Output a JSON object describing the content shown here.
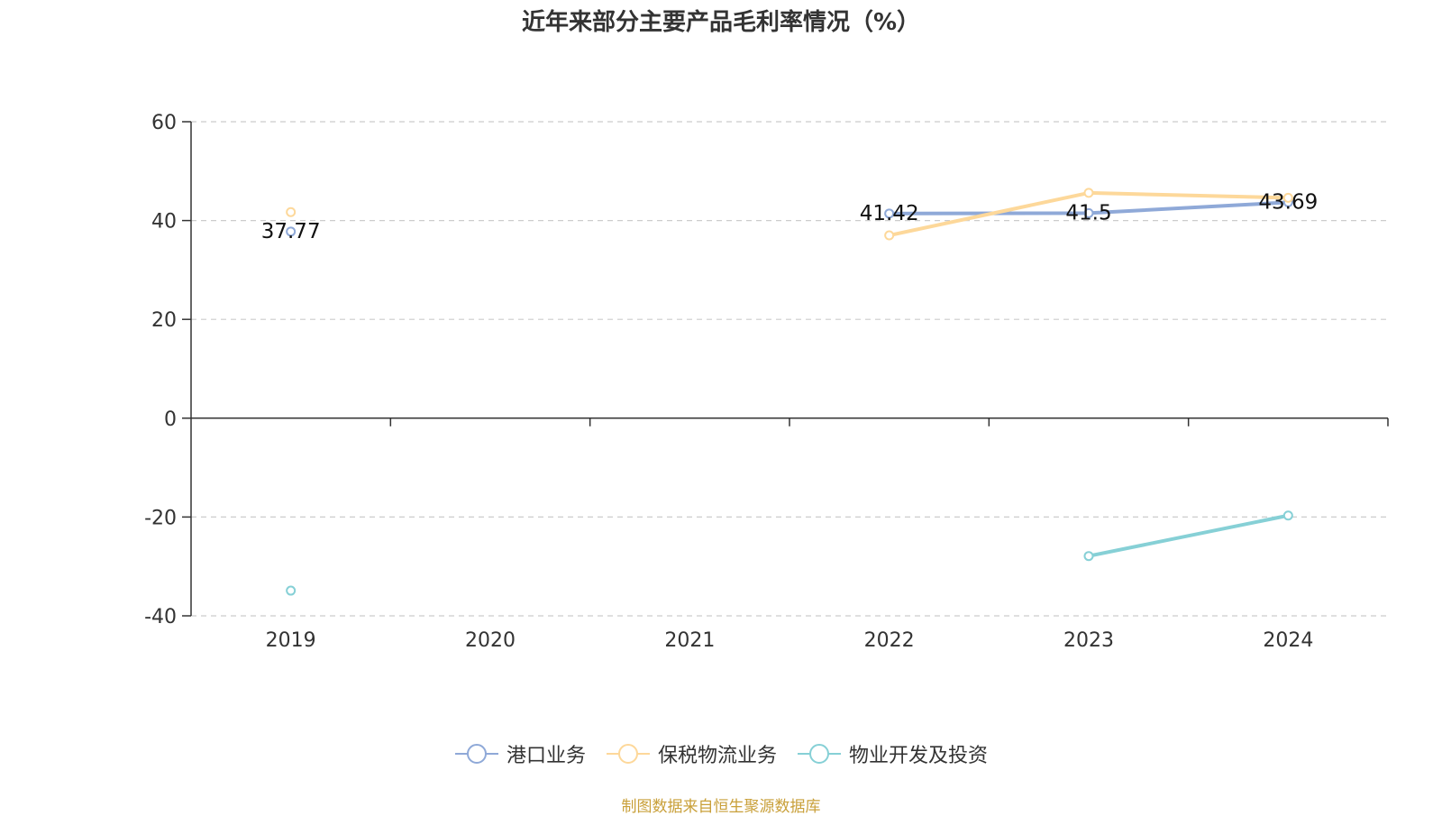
{
  "chart_data": {
    "type": "line",
    "title": "近年来部分主要产品毛利率情况（%）",
    "categories": [
      "2019",
      "2020",
      "2021",
      "2022",
      "2023",
      "2024"
    ],
    "ylim": [
      -40,
      60
    ],
    "yticks": [
      60,
      40,
      20,
      0,
      -20,
      -40
    ],
    "ytick_labels": [
      "60",
      "40",
      "20",
      "0",
      "-20",
      "-40"
    ],
    "grid": true,
    "legend_position": "bottom",
    "series": [
      {
        "name": "港口业务",
        "color": "#8fa9d8",
        "values": [
          37.77,
          null,
          null,
          41.42,
          41.5,
          43.69
        ],
        "labels": [
          "37.77",
          null,
          null,
          "41.42",
          "41.5",
          "43.69"
        ]
      },
      {
        "name": "保税物流业务",
        "color": "#fdd89a",
        "values": [
          41.7,
          null,
          null,
          37.0,
          45.6,
          44.6
        ],
        "labels": [
          null,
          null,
          null,
          null,
          null,
          null
        ]
      },
      {
        "name": "物业开发及投资",
        "color": "#86d0d6",
        "values": [
          -34.9,
          null,
          null,
          null,
          -27.9,
          -19.7
        ],
        "labels": [
          null,
          null,
          null,
          null,
          null,
          null
        ]
      }
    ]
  },
  "source": "制图数据来自恒生聚源数据库"
}
